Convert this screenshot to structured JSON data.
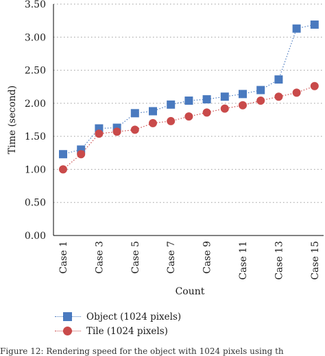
{
  "chart_data": {
    "type": "line",
    "xlabel": "Count",
    "ylabel": "Time (second)",
    "categories": [
      "Case 1",
      "Case 2",
      "Case 3",
      "Case 4",
      "Case 5",
      "Case 6",
      "Case 7",
      "Case 8",
      "Case 9",
      "Case 10",
      "Case 11",
      "Case 12",
      "Case 13",
      "Case 14",
      "Case 15"
    ],
    "xtick_labels": [
      "Case 1",
      "Case 3",
      "Case 5",
      "Case 7",
      "Case 9",
      "Case 11",
      "Case 13",
      "Case 15"
    ],
    "ylim": [
      0,
      3.5
    ],
    "yticks": [
      "0.00",
      "0.50",
      "1.00",
      "1.50",
      "2.00",
      "2.50",
      "3.00",
      "3.50"
    ],
    "grid": "horizontal dotted",
    "legend_position": "bottom-left",
    "series": [
      {
        "name": "Object (1024 pixels)",
        "marker": "square",
        "color": "#4a7abf",
        "values": [
          1.23,
          1.3,
          1.62,
          1.63,
          1.85,
          1.88,
          1.98,
          2.04,
          2.06,
          2.1,
          2.14,
          2.2,
          2.36,
          3.13,
          3.19
        ]
      },
      {
        "name": "Tile (1024 pixels)",
        "marker": "circle",
        "color": "#c94a4a",
        "values": [
          1.0,
          1.23,
          1.54,
          1.57,
          1.6,
          1.7,
          1.73,
          1.8,
          1.86,
          1.92,
          1.97,
          2.04,
          2.1,
          2.16,
          2.26
        ]
      }
    ]
  },
  "caption": "Figure 12: Rendering speed for the object with 1024 pixels using th"
}
